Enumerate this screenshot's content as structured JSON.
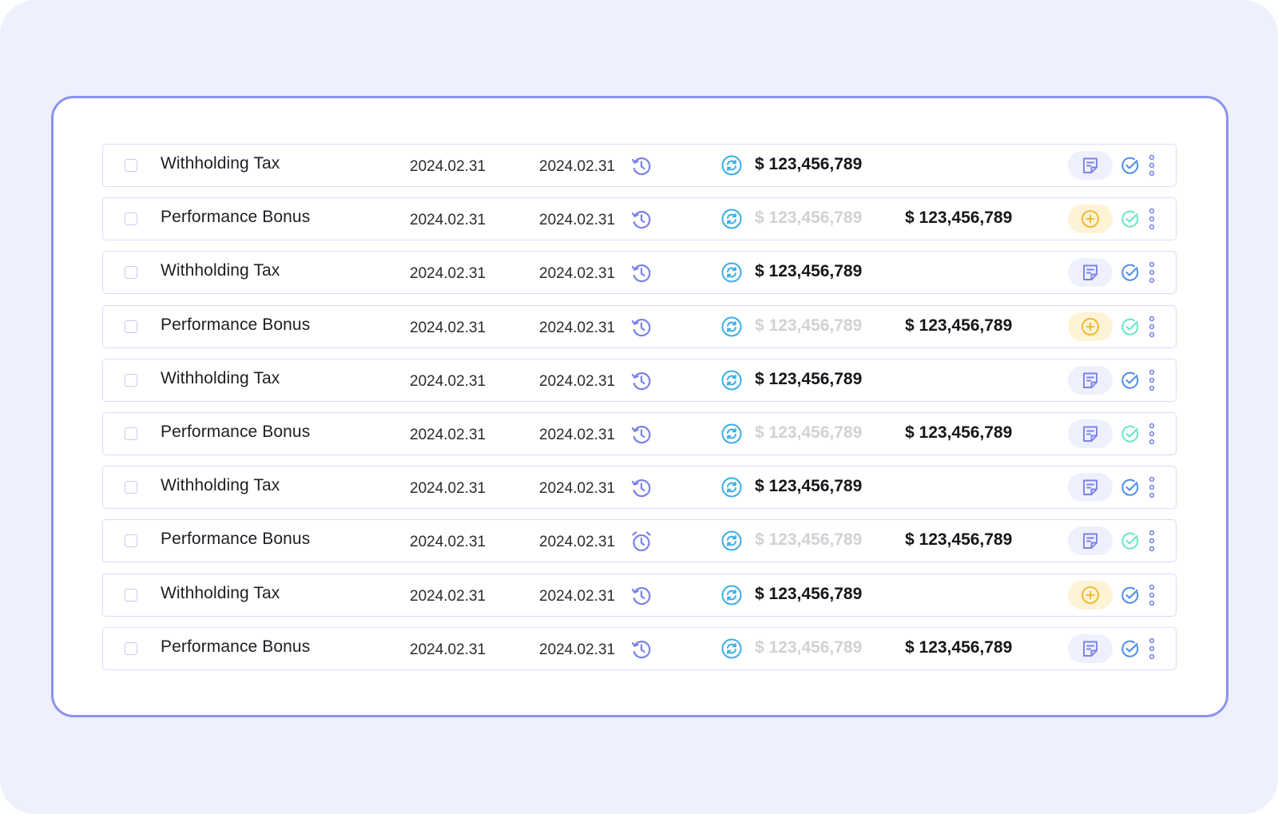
{
  "colors": {
    "backdrop": "#eef0fd",
    "panel_border": "#8b92ee",
    "row_border": "#dadcf6",
    "history_icon": "#7a82e8",
    "sync_icon": "#3aaee6",
    "note_pill": "#eef0fd",
    "add_pill": "#fff3d6",
    "add_icon": "#f2b41d",
    "check_blue": "#4f8dea",
    "check_teal": "#67e7c5",
    "muted_amount": "#d1d1d6"
  },
  "rows": [
    {
      "title": "Withholding Tax",
      "date_start": "2024.02.31",
      "date_end": "2024.02.31",
      "time_icon": "history-icon",
      "amount": "$ 123,456,789",
      "amount_muted": false,
      "amount2": "",
      "action_icon": "note-icon",
      "check_color": "blue"
    },
    {
      "title": "Performance Bonus",
      "date_start": "2024.02.31",
      "date_end": "2024.02.31",
      "time_icon": "history-icon",
      "amount": "$ 123,456,789",
      "amount_muted": true,
      "amount2": "$ 123,456,789",
      "action_icon": "add-circle-icon",
      "check_color": "teal"
    },
    {
      "title": "Withholding Tax",
      "date_start": "2024.02.31",
      "date_end": "2024.02.31",
      "time_icon": "history-icon",
      "amount": "$ 123,456,789",
      "amount_muted": false,
      "amount2": "",
      "action_icon": "note-icon",
      "check_color": "blue"
    },
    {
      "title": "Performance Bonus",
      "date_start": "2024.02.31",
      "date_end": "2024.02.31",
      "time_icon": "history-icon",
      "amount": "$ 123,456,789",
      "amount_muted": true,
      "amount2": "$ 123,456,789",
      "action_icon": "add-circle-icon",
      "check_color": "teal"
    },
    {
      "title": "Withholding Tax",
      "date_start": "2024.02.31",
      "date_end": "2024.02.31",
      "time_icon": "history-icon",
      "amount": "$ 123,456,789",
      "amount_muted": false,
      "amount2": "",
      "action_icon": "note-icon",
      "check_color": "blue"
    },
    {
      "title": "Performance Bonus",
      "date_start": "2024.02.31",
      "date_end": "2024.02.31",
      "time_icon": "history-icon",
      "amount": "$ 123,456,789",
      "amount_muted": true,
      "amount2": "$ 123,456,789",
      "action_icon": "note-icon",
      "check_color": "teal"
    },
    {
      "title": "Withholding Tax",
      "date_start": "2024.02.31",
      "date_end": "2024.02.31",
      "time_icon": "history-icon",
      "amount": "$ 123,456,789",
      "amount_muted": false,
      "amount2": "",
      "action_icon": "note-icon",
      "check_color": "blue"
    },
    {
      "title": "Performance Bonus",
      "date_start": "2024.02.31",
      "date_end": "2024.02.31",
      "time_icon": "alarm-clock-icon",
      "amount": "$ 123,456,789",
      "amount_muted": true,
      "amount2": "$ 123,456,789",
      "action_icon": "note-icon",
      "check_color": "teal"
    },
    {
      "title": "Withholding Tax",
      "date_start": "2024.02.31",
      "date_end": "2024.02.31",
      "time_icon": "history-icon",
      "amount": "$ 123,456,789",
      "amount_muted": false,
      "amount2": "",
      "action_icon": "add-circle-icon",
      "check_color": "blue"
    },
    {
      "title": "Performance Bonus",
      "date_start": "2024.02.31",
      "date_end": "2024.02.31",
      "time_icon": "history-icon",
      "amount": "$ 123,456,789",
      "amount_muted": true,
      "amount2": "$ 123,456,789",
      "action_icon": "note-icon",
      "check_color": "blue"
    }
  ]
}
